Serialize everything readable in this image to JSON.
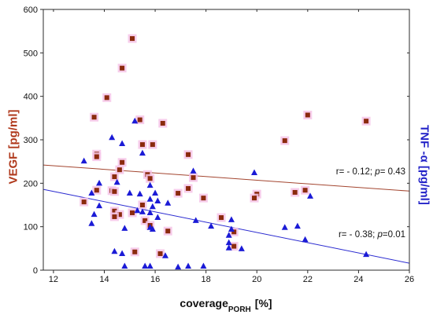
{
  "chart_data": {
    "type": "scatter",
    "xlabel": {
      "main": "coverage",
      "sub": "PORH",
      "unit": "[%]"
    },
    "ylabel_left": "VEGF [pg/ml]",
    "ylabel_right": "TNF -α [pg/ml]",
    "ylabel_left_color": "#b0391c",
    "ylabel_right_color": "#2323c8",
    "xlim": [
      11.6,
      26
    ],
    "ylim": [
      0,
      600
    ],
    "xticks": [
      12,
      14,
      16,
      18,
      20,
      22,
      24,
      26
    ],
    "yticks": [
      0,
      100,
      200,
      300,
      400,
      500,
      600
    ],
    "grid": false,
    "legend": "none",
    "series": [
      {
        "marker": "square",
        "axis": "left",
        "color": "#8b2a0d",
        "halo_color": "#f6c4e8",
        "line_color": "#a3452f",
        "points": [
          [
            15.1,
            533
          ],
          [
            14.7,
            465
          ],
          [
            14.1,
            397
          ],
          [
            13.6,
            352
          ],
          [
            15.4,
            346
          ],
          [
            16.3,
            338
          ],
          [
            22.0,
            357
          ],
          [
            24.3,
            343
          ],
          [
            21.1,
            298
          ],
          [
            15.5,
            289
          ],
          [
            15.9,
            289
          ],
          [
            17.3,
            266
          ],
          [
            13.7,
            267
          ],
          [
            13.7,
            261
          ],
          [
            14.7,
            248
          ],
          [
            14.6,
            231
          ],
          [
            14.4,
            215
          ],
          [
            15.7,
            220
          ],
          [
            15.8,
            211
          ],
          [
            17.5,
            213
          ],
          [
            13.7,
            184
          ],
          [
            14.3,
            183
          ],
          [
            14.4,
            181
          ],
          [
            17.3,
            188
          ],
          [
            16.9,
            177
          ],
          [
            13.2,
            157
          ],
          [
            17.9,
            166
          ],
          [
            20.0,
            175
          ],
          [
            19.9,
            166
          ],
          [
            21.5,
            179
          ],
          [
            21.9,
            184
          ],
          [
            15.5,
            150
          ],
          [
            15.6,
            114
          ],
          [
            15.8,
            103
          ],
          [
            14.4,
            136
          ],
          [
            14.6,
            128
          ],
          [
            14.4,
            123
          ],
          [
            15.1,
            132
          ],
          [
            16.5,
            90
          ],
          [
            18.6,
            121
          ],
          [
            19.1,
            88
          ],
          [
            19.1,
            55
          ],
          [
            15.2,
            42
          ],
          [
            16.2,
            38
          ]
        ],
        "fit": {
          "x": [
            11.6,
            26
          ],
          "y": [
            242,
            182
          ]
        }
      },
      {
        "marker": "triangle",
        "axis": "right",
        "color": "#1b1bd6",
        "line_color": "#2a2ad0",
        "points": [
          [
            15.2,
            343
          ],
          [
            14.3,
            305
          ],
          [
            14.7,
            291
          ],
          [
            15.5,
            269
          ],
          [
            17.5,
            228
          ],
          [
            19.9,
            224
          ],
          [
            13.2,
            251
          ],
          [
            13.8,
            200
          ],
          [
            14.5,
            202
          ],
          [
            15.8,
            195
          ],
          [
            15.0,
            177
          ],
          [
            15.4,
            175
          ],
          [
            16.0,
            177
          ],
          [
            13.5,
            177
          ],
          [
            15.8,
            163
          ],
          [
            16.1,
            159
          ],
          [
            16.5,
            154
          ],
          [
            13.8,
            148
          ],
          [
            13.6,
            128
          ],
          [
            13.5,
            107
          ],
          [
            15.3,
            137
          ],
          [
            15.9,
            146
          ],
          [
            15.5,
            134
          ],
          [
            15.8,
            132
          ],
          [
            16.1,
            121
          ],
          [
            15.8,
            98
          ],
          [
            14.8,
            96
          ],
          [
            15.9,
            94
          ],
          [
            17.6,
            114
          ],
          [
            18.2,
            101
          ],
          [
            19.0,
            116
          ],
          [
            19.0,
            94
          ],
          [
            18.9,
            80
          ],
          [
            18.9,
            63
          ],
          [
            18.9,
            51
          ],
          [
            19.4,
            49
          ],
          [
            21.1,
            98
          ],
          [
            21.6,
            101
          ],
          [
            21.9,
            70
          ],
          [
            22.1,
            170
          ],
          [
            24.3,
            36
          ],
          [
            14.4,
            43
          ],
          [
            14.7,
            38
          ],
          [
            14.8,
            9
          ],
          [
            15.6,
            9
          ],
          [
            15.8,
            9
          ],
          [
            16.4,
            33
          ],
          [
            16.9,
            7
          ],
          [
            17.3,
            9
          ],
          [
            17.9,
            9
          ]
        ],
        "fit": {
          "x": [
            11.6,
            26
          ],
          "y": [
            186,
            16
          ]
        }
      }
    ],
    "annotations": [
      {
        "prefix": "r= - 0.12; ",
        "italic": "p",
        "suffix": "= 0.43"
      },
      {
        "prefix": "r= - 0.38; ",
        "italic": "p",
        "suffix": "=0.01"
      }
    ]
  }
}
